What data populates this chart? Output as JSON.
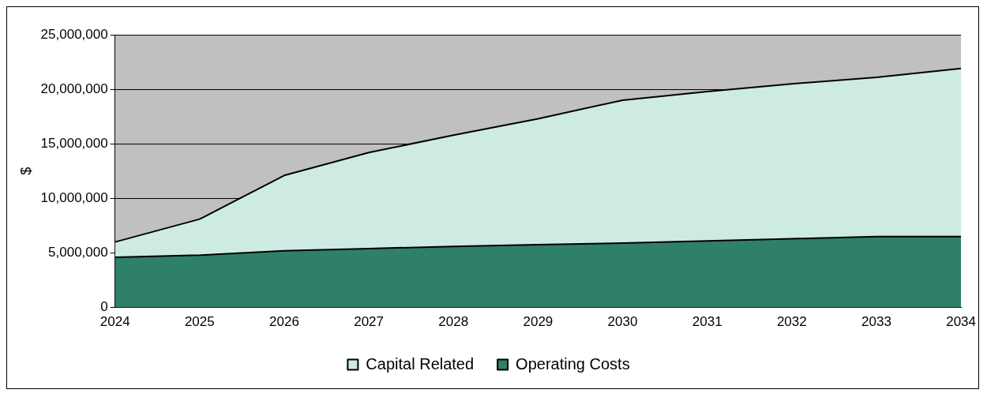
{
  "chart_data": {
    "type": "area",
    "ylabel": "$",
    "stacked": true,
    "x": [
      2024,
      2025,
      2026,
      2027,
      2028,
      2029,
      2030,
      2031,
      2032,
      2033,
      2034
    ],
    "series": [
      {
        "name": "Operating Costs",
        "color": "#2e8068",
        "values": [
          4600000,
          4800000,
          5200000,
          5400000,
          5600000,
          5750000,
          5900000,
          6100000,
          6300000,
          6500000,
          6500000
        ]
      },
      {
        "name": "Capital Related",
        "color": "#cdebe3",
        "values": [
          1400000,
          3300000,
          6900000,
          8800000,
          10200000,
          11550000,
          13100000,
          13700000,
          14200000,
          14600000,
          15400000
        ]
      }
    ],
    "xlim": [
      2024,
      2034
    ],
    "xticks": [
      2024,
      2025,
      2026,
      2027,
      2028,
      2029,
      2030,
      2031,
      2032,
      2033,
      2034
    ],
    "ylim": [
      0,
      25000000
    ],
    "yticks": [
      0,
      {
        "value": 5000000,
        "label": "5,000,000"
      },
      {
        "value": 10000000,
        "label": "10,000,000"
      },
      {
        "value": 15000000,
        "label": "15,000,000"
      },
      {
        "value": 20000000,
        "label": "20,000,000"
      },
      {
        "value": 25000000,
        "label": "25,000,000"
      }
    ],
    "grid": "y",
    "legend": "bottom"
  }
}
